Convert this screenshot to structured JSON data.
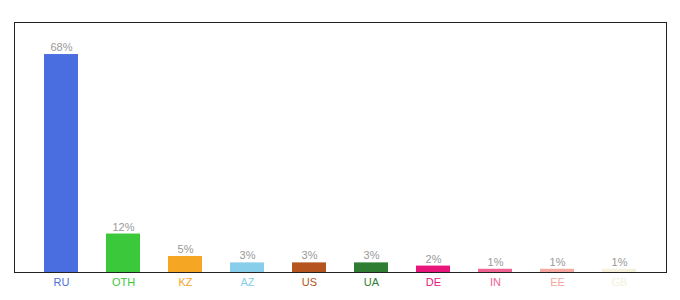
{
  "chart_data": {
    "type": "bar",
    "categories": [
      "RU",
      "OTH",
      "KZ",
      "AZ",
      "US",
      "UA",
      "DE",
      "IN",
      "EE",
      "GB"
    ],
    "values": [
      68,
      12,
      5,
      3,
      3,
      3,
      2,
      1,
      1,
      1
    ],
    "value_labels": [
      "68%",
      "12%",
      "5%",
      "3%",
      "3%",
      "3%",
      "2%",
      "1%",
      "1%",
      "1%"
    ],
    "data_labels": true,
    "colors": [
      "#4A6EE0",
      "#3BC83B",
      "#F5A623",
      "#87CEEB",
      "#B5541E",
      "#2E7D32",
      "#E8157A",
      "#F06292",
      "#F4A8A0",
      "#F5F0DC"
    ],
    "ylim": [
      0,
      78
    ],
    "tick_labels": "x",
    "grid": false
  }
}
